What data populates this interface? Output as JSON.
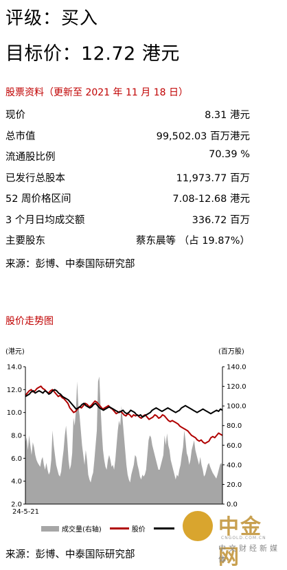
{
  "header": {
    "rating": "评级：买入",
    "target": "目标价：12.72 港元"
  },
  "stock_info": {
    "title": "股票资料（更新至 2021 年 11 月 18 日）",
    "rows": [
      {
        "label": "现价",
        "value": "8.31 港元"
      },
      {
        "label": "总市值",
        "value": "99,502.03 百万港元"
      },
      {
        "label": "流通股比例",
        "value": "70.39 %"
      },
      {
        "label": "已发行总股本",
        "value": "11,973.77 百万"
      },
      {
        "label": "52 周价格区间",
        "value": "7.08-12.68 港元"
      },
      {
        "label": "3 个月日均成交额",
        "value": "336.72 百万"
      },
      {
        "label": "主要股东",
        "value": "蔡东晨等 （占 19.87%）"
      }
    ],
    "source": "来源：彭博、中泰国际研究部"
  },
  "price_chart": {
    "title": "股价走势图",
    "source": "来源：彭博、中泰国际研究部"
  },
  "chart_data": {
    "type": "line",
    "left_axis_unit": "(港元)",
    "right_axis_unit": "(百万股)",
    "left_ylim": [
      2.0,
      14.0
    ],
    "right_ylim": [
      0.0,
      140.0
    ],
    "left_ticks": [
      "14.0",
      "12.0",
      "10.0",
      "8.0",
      "6.0",
      "4.0",
      "2.0"
    ],
    "right_ticks": [
      "140.0",
      "120.0",
      "100.0",
      "80.0",
      "60.0",
      "40.0",
      "20.0",
      "0.0"
    ],
    "x_label_start": "24-5-21",
    "grid": false,
    "series": [
      {
        "name": "成交量(右轴)",
        "kind": "area",
        "axis": "right",
        "color": "#a6a6a6",
        "values": [
          62,
          68,
          55,
          70,
          60,
          50,
          63,
          58,
          50,
          45,
          42,
          40,
          38,
          45,
          48,
          40,
          35,
          42,
          35,
          30,
          33,
          45,
          75,
          60,
          50,
          40,
          35,
          30,
          28,
          33,
          45,
          55,
          70,
          80,
          65,
          45,
          35,
          40,
          52,
          88,
          80,
          95,
          125,
          100,
          90,
          75,
          60,
          50,
          40,
          55,
          45,
          30,
          25,
          22,
          28,
          32,
          45,
          60,
          75,
          125,
          130,
          100,
          75,
          55,
          45,
          38,
          35,
          45,
          50,
          45,
          38,
          40,
          35,
          45,
          60,
          75,
          85,
          80,
          100,
          85,
          70,
          55,
          40,
          30,
          25,
          22,
          30,
          35,
          40,
          50,
          48,
          40,
          35,
          28,
          25,
          30,
          28,
          30,
          35,
          50,
          65,
          70,
          68,
          60,
          55,
          50,
          45,
          40,
          35,
          35,
          40,
          45,
          50,
          70,
          60,
          72,
          60,
          55,
          45,
          40,
          35,
          30,
          25,
          30,
          28,
          35,
          40,
          50,
          58,
          75,
          65,
          52,
          48,
          40,
          45,
          55,
          60,
          65,
          55,
          50,
          45,
          40,
          48,
          40,
          35,
          28,
          30,
          35,
          40,
          42,
          38,
          35,
          32,
          30,
          28,
          26,
          30,
          35,
          40,
          42,
          38
        ]
      },
      {
        "name": "股价",
        "kind": "line",
        "axis": "left",
        "color": "#b00000",
        "values": [
          11.5,
          11.7,
          11.9,
          12.0,
          11.8,
          11.9,
          12.1,
          12.2,
          12.3,
          12.1,
          12.0,
          11.8,
          11.7,
          11.9,
          12.0,
          11.8,
          11.6,
          11.4,
          11.5,
          11.3,
          11.2,
          11.0,
          10.8,
          10.4,
          10.2,
          10.0,
          10.1,
          10.3,
          10.5,
          10.4,
          10.6,
          10.8,
          10.7,
          10.5,
          10.6,
          10.8,
          11.0,
          10.9,
          10.7,
          10.5,
          10.3,
          10.4,
          10.5,
          10.6,
          10.4,
          10.3,
          10.1,
          9.9,
          10.0,
          10.1,
          10.0,
          9.8,
          9.7,
          9.9,
          9.8,
          9.6,
          9.8,
          9.7,
          9.8,
          9.6,
          9.5,
          9.7,
          9.8,
          9.6,
          9.4,
          9.5,
          9.6,
          9.8,
          9.7,
          9.5,
          9.6,
          9.8,
          9.7,
          9.5,
          9.3,
          9.2,
          9.3,
          9.2,
          9.1,
          9.0,
          8.8,
          8.7,
          8.6,
          8.5,
          8.4,
          8.2,
          8.0,
          7.9,
          7.8,
          7.6,
          7.5,
          7.6,
          7.4,
          7.3,
          7.4,
          7.5,
          7.8,
          7.9,
          7.8,
          8.0,
          8.2,
          8.1,
          8.0
        ]
      },
      {
        "name": "",
        "kind": "line",
        "axis": "left",
        "color": "#000000",
        "values": [
          11.4,
          11.5,
          11.6,
          11.8,
          11.9,
          11.7,
          11.8,
          11.9,
          11.8,
          11.7,
          11.9,
          11.8,
          11.6,
          11.7,
          11.9,
          12.0,
          11.9,
          11.7,
          11.6,
          11.4,
          11.3,
          11.2,
          11.1,
          10.9,
          10.7,
          10.5,
          10.3,
          10.4,
          10.5,
          10.7,
          10.8,
          10.6,
          10.5,
          10.4,
          10.5,
          10.7,
          10.8,
          10.6,
          10.4,
          10.3,
          10.2,
          10.3,
          10.4,
          10.5,
          10.4,
          10.3,
          10.2,
          10.1,
          10.0,
          10.1,
          10.2,
          10.0,
          9.9,
          10.0,
          10.2,
          10.1,
          10.0,
          9.8,
          9.7,
          9.8,
          9.6,
          9.7,
          9.8,
          9.9,
          10.0,
          10.2,
          10.3,
          10.4,
          10.3,
          10.2,
          10.1,
          10.2,
          10.3,
          10.4,
          10.3,
          10.2,
          10.1,
          10.0,
          10.1,
          10.2,
          10.4,
          10.5,
          10.6,
          10.5,
          10.4,
          10.3,
          10.2,
          10.1,
          10.0,
          10.1,
          10.2,
          10.3,
          10.2,
          10.1,
          10.0,
          9.9,
          10.0,
          10.1,
          10.2,
          10.1,
          10.3,
          10.2
        ]
      }
    ]
  },
  "logo": {
    "text": "中金网",
    "url": "CNGOLD.COM.CN",
    "subtitle": "中文财经新媒体",
    "color": "#d9a52e"
  }
}
